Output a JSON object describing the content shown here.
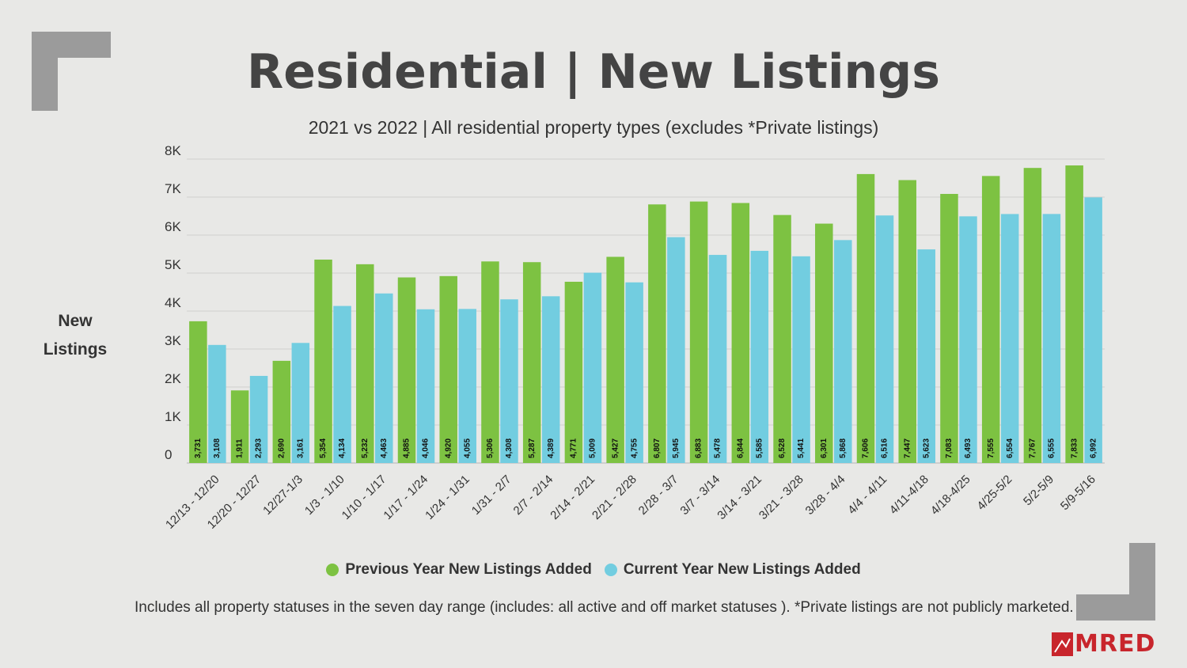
{
  "title": "Residential | New Listings",
  "subtitle": "2021 vs 2022 | All residential property types (excludes *Private listings)",
  "ylabel_lines": [
    "New",
    "Listings"
  ],
  "legend": [
    {
      "label": "Previous Year New Listings Added",
      "color": "#7dc242"
    },
    {
      "label": "Current Year New Listings Added",
      "color": "#72cde0"
    }
  ],
  "footnote": "Includes all property statuses in the seven day range (includes: all active and off market statuses ).  *Private listings are not publicly marketed.",
  "logo": {
    "text": "MRED",
    "color": "#c8252c"
  },
  "colors": {
    "background": "#e8e8e6",
    "corner": "#9b9b9b"
  },
  "chart_data": {
    "type": "bar",
    "categories": [
      "12/13 - 12/20",
      "12/20 - 12/27",
      "12/27-1/3",
      "1/3 - 1/10",
      "1/10 - 1/17",
      "1/17 - 1/24",
      "1/24 - 1/31",
      "1/31 - 2/7",
      "2/7 - 2/14",
      "2/14 - 2/21",
      "2/21 - 2/28",
      "2/28 - 3/7",
      "3/7 - 3/14",
      "3/14 - 3/21",
      "3/21 - 3/28",
      "3/28 - 4/4",
      "4/4 - 4/11",
      "4/11-4/18",
      "4/18-4/25",
      "4/25-5/2",
      "5/2-5/9",
      "5/9-5/16"
    ],
    "series": [
      {
        "name": "Previous Year New Listings Added",
        "color": "#7dc242",
        "values": [
          3731,
          1911,
          2690,
          5354,
          5232,
          4885,
          4920,
          5306,
          5287,
          4771,
          5427,
          6807,
          6883,
          6844,
          6528,
          6301,
          7606,
          7447,
          7083,
          7555,
          7767,
          7833
        ],
        "labels": [
          "3,731",
          "1,911",
          "2,690",
          "5,354",
          "5,232",
          "4,885",
          "4,920",
          "5,306",
          "5,287",
          "4,771",
          "5,427",
          "6,807",
          "6,883",
          "6,844",
          "6,528",
          "6,301",
          "7,606",
          "7,447",
          "7,083",
          "7,555",
          "7,767",
          "7,833"
        ]
      },
      {
        "name": "Current Year New Listings Added",
        "color": "#72cde0",
        "values": [
          3108,
          2293,
          3161,
          4134,
          4463,
          4046,
          4055,
          4308,
          4389,
          5009,
          4755,
          5945,
          5478,
          5585,
          5441,
          5868,
          6516,
          5623,
          6493,
          6554,
          6555,
          6992
        ],
        "labels": [
          "3,108",
          "2,293",
          "3,161",
          "4,134",
          "4,463",
          "4,046",
          "4,055",
          "4,308",
          "4,389",
          "5,009",
          "4,755",
          "5,945",
          "5,478",
          "5,585",
          "5,441",
          "5,868",
          "6,516",
          "5,623",
          "6,493",
          "6,554",
          "6,555",
          "6,992"
        ]
      }
    ],
    "ylim": [
      0,
      8000
    ],
    "yticks": [
      0,
      1000,
      2000,
      3000,
      4000,
      5000,
      6000,
      7000,
      8000
    ],
    "ytick_labels": [
      "0",
      "1K",
      "2K",
      "3K",
      "4K",
      "5K",
      "6K",
      "7K",
      "8K"
    ],
    "grid": true,
    "legend_position": "bottom"
  }
}
